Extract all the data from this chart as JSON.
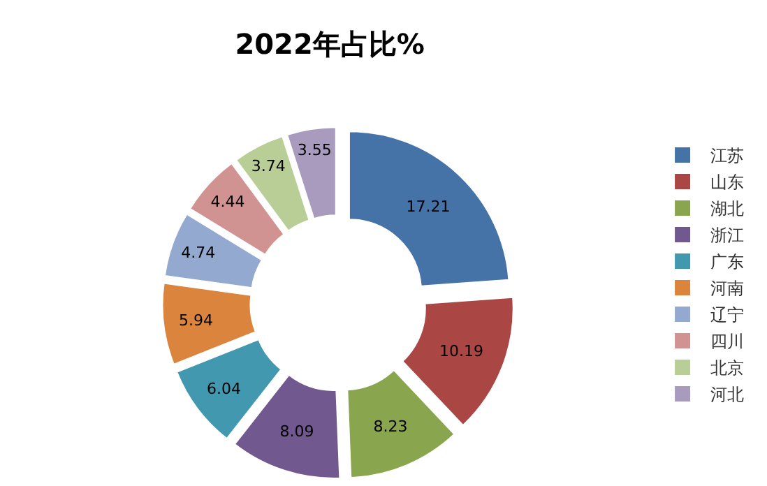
{
  "chart_data": {
    "type": "donut",
    "title": "2022年占比%",
    "categories": [
      "江苏",
      "山东",
      "湖北",
      "浙江",
      "广东",
      "河南",
      "辽宁",
      "四川",
      "北京",
      "河北"
    ],
    "values": [
      17.21,
      10.19,
      8.23,
      8.09,
      6.04,
      5.94,
      4.74,
      4.44,
      3.74,
      3.55
    ],
    "colors": [
      "#4572a7",
      "#aa4643",
      "#89a54e",
      "#71588f",
      "#4198af",
      "#db843d",
      "#93a9cf",
      "#d19392",
      "#b9cd96",
      "#a99bbd"
    ],
    "data_labels": true,
    "legend": "right"
  }
}
